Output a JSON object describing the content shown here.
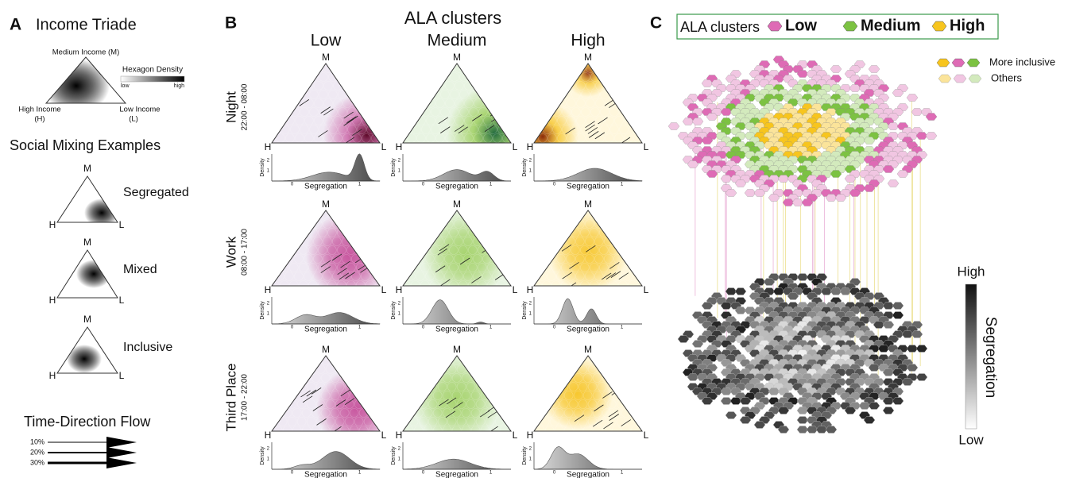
{
  "panel_a": {
    "label": "A",
    "title": "Income Triade",
    "vertex_names": {
      "m": "Medium Income (M)",
      "h": [
        "High Income",
        "(H)"
      ],
      "l": [
        "Low Income",
        "(L)"
      ]
    },
    "density_legend": {
      "title": "Hexagon Density",
      "low": "low",
      "high": "high"
    },
    "examples_title": "Social Mixing Examples",
    "examples": [
      "Segregated",
      "Mixed",
      "Inclusive"
    ],
    "flow_title": "Time-Direction Flow",
    "flow_levels": [
      "10%",
      "20%",
      "30%"
    ]
  },
  "vertices": [
    "M",
    "H",
    "L"
  ],
  "panel_b": {
    "label": "B",
    "title": "ALA clusters",
    "clusters": [
      {
        "name": "Low",
        "color": "#c8579f"
      },
      {
        "name": "Medium",
        "color": "#8cc63f"
      },
      {
        "name": "High",
        "color": "#f6c21c"
      }
    ],
    "rows": [
      {
        "name": "Night",
        "time": "22:00 - 08:00"
      },
      {
        "name": "Work",
        "time": "08:00 - 17:00"
      },
      {
        "name": "Third Place",
        "time": "17:00 - 22:00"
      }
    ],
    "density_ylabel": "Density",
    "density_yticks": [
      "1",
      "2"
    ],
    "density_xticks": [
      "0",
      "1"
    ],
    "density_xlabel": "Segregation"
  },
  "panel_c": {
    "label": "C",
    "legend_title": "ALA clusters",
    "legend_items": [
      "Low",
      "Medium",
      "High"
    ],
    "inclusive_legend": [
      "More inclusive",
      "Others"
    ],
    "colorbar": {
      "high": "High",
      "title": "Segregation",
      "low": "Low"
    }
  }
}
